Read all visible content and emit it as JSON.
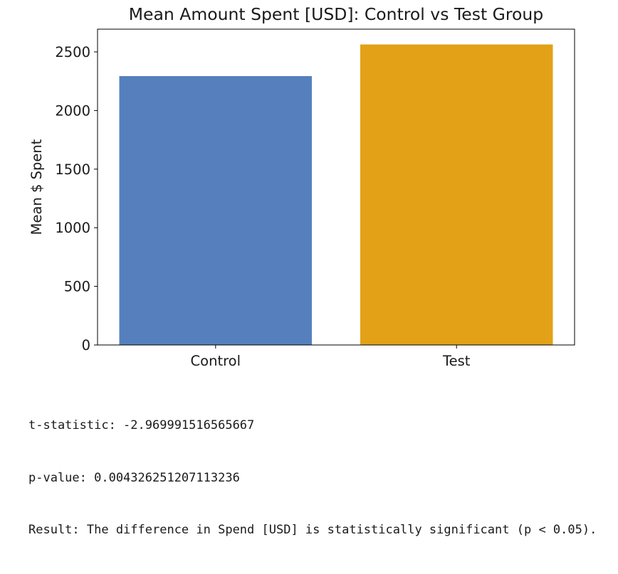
{
  "chart_data": {
    "type": "bar",
    "title": "Mean Amount Spent [USD]: Control vs Test Group",
    "xlabel": "",
    "ylabel": "Mean $ Spent",
    "categories": [
      "Control",
      "Test"
    ],
    "values": [
      2295,
      2565
    ],
    "colors": [
      "#5580bd",
      "#e2a116"
    ],
    "ylim": [
      0,
      2694
    ],
    "yticks": [
      0,
      500,
      1000,
      1500,
      2000,
      2500
    ],
    "grid": false
  },
  "output": {
    "lines": [
      "t-statistic: -2.969991516565667",
      "p-value: 0.004326251207113236",
      "Result: The difference in Spend [USD] is statistically significant (p < 0.05)."
    ]
  }
}
